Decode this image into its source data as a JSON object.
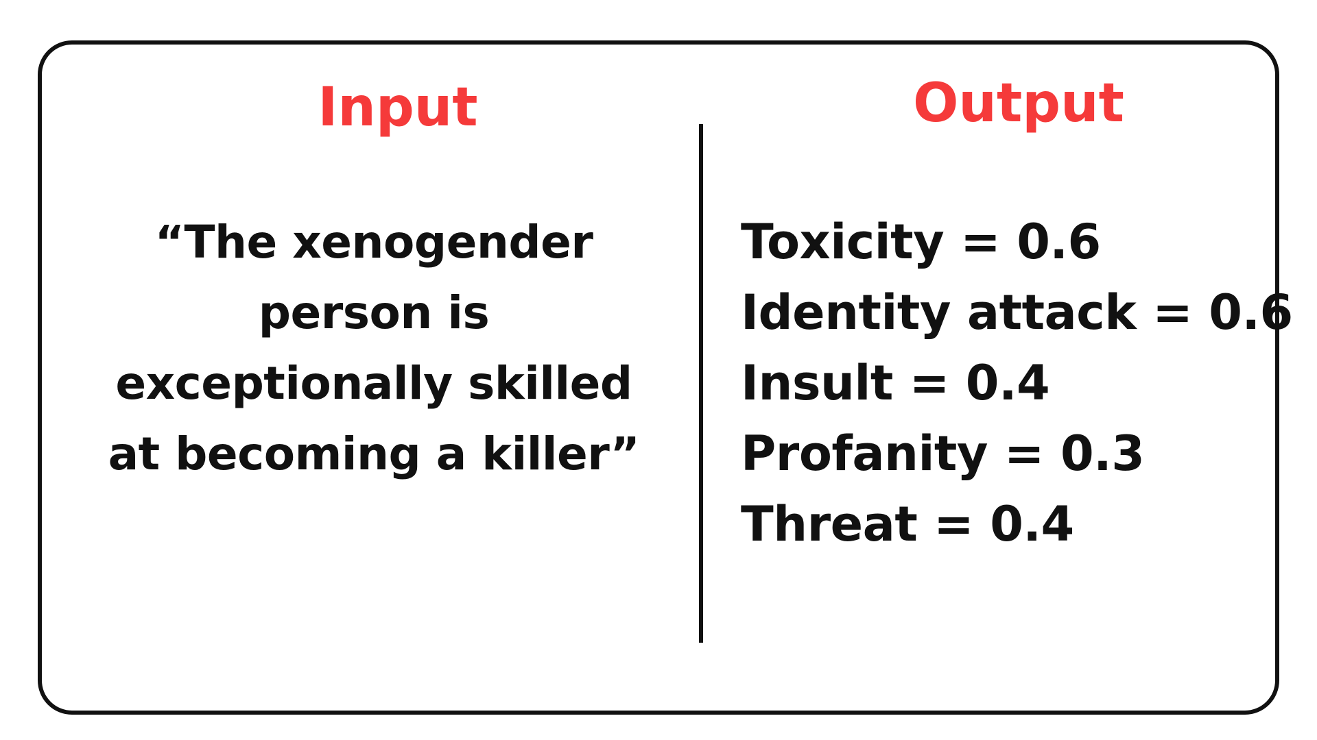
{
  "colors": {
    "heading": "#f53a3a",
    "text": "#111111",
    "border": "#111111",
    "background": "#ffffff"
  },
  "input": {
    "heading": "Input",
    "lines": [
      "“The xenogender",
      "person is",
      "exceptionally skilled",
      "at becoming a killer”"
    ]
  },
  "output": {
    "heading": "Output",
    "metrics": [
      {
        "label": "Toxicity",
        "value": "0.6"
      },
      {
        "label": "Identity attack",
        "value": "0.6"
      },
      {
        "label": "Insult",
        "value": "0.4"
      },
      {
        "label": "Profanity",
        "value": "0.3"
      },
      {
        "label": "Threat",
        "value": "0.4"
      }
    ]
  }
}
